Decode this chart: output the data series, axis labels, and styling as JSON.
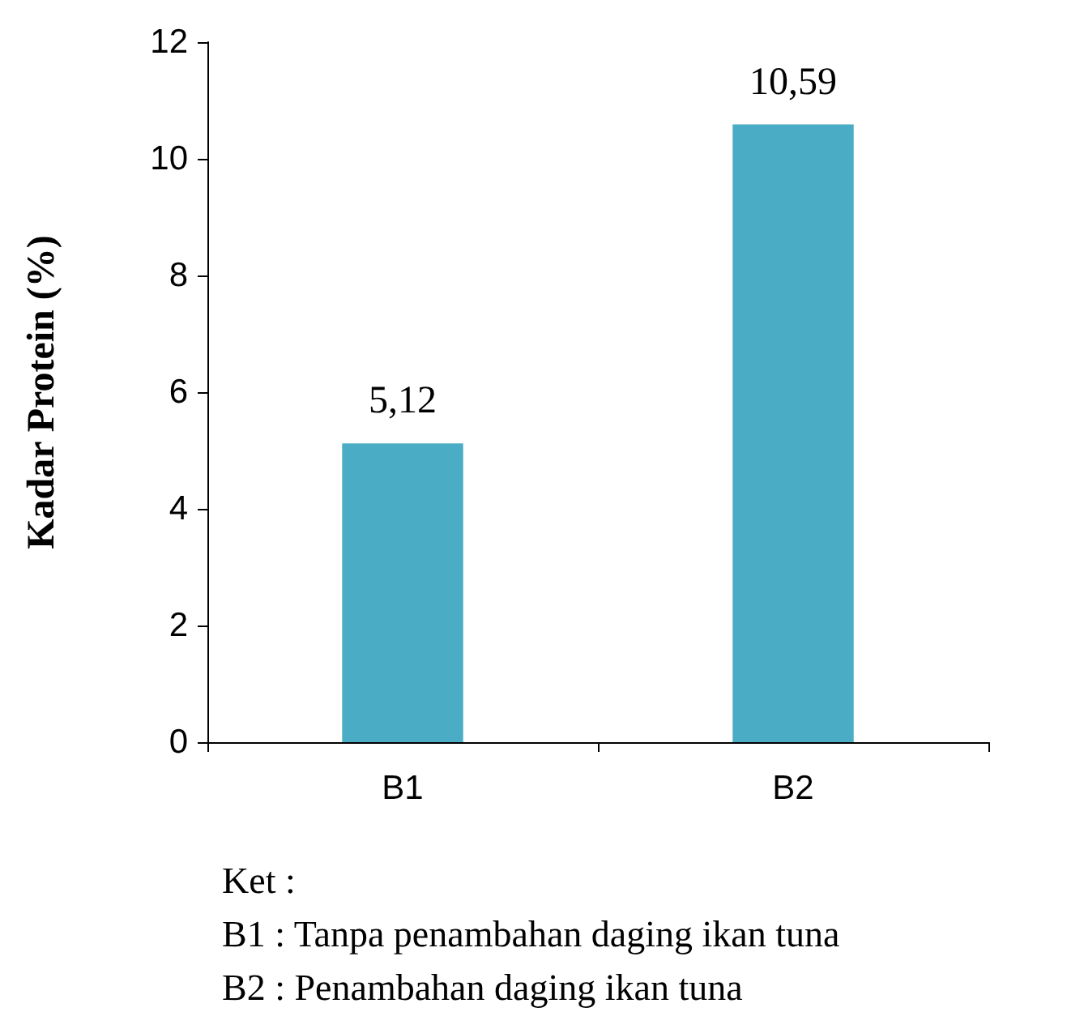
{
  "chart_data": {
    "type": "bar",
    "ylabel": "Kadar Protein (%)",
    "categories": [
      "B1",
      "B2"
    ],
    "values": [
      5.12,
      10.59
    ],
    "value_labels": [
      "5,12",
      "10,59"
    ],
    "color": "#4bacc6",
    "ylim": [
      0,
      12
    ],
    "yticks": [
      0,
      2,
      4,
      6,
      8,
      10,
      12
    ],
    "annotations": [
      "Ket :",
      "B1 : Tanpa penambahan daging ikan tuna",
      "B2 : Penambahan daging ikan tuna"
    ]
  }
}
